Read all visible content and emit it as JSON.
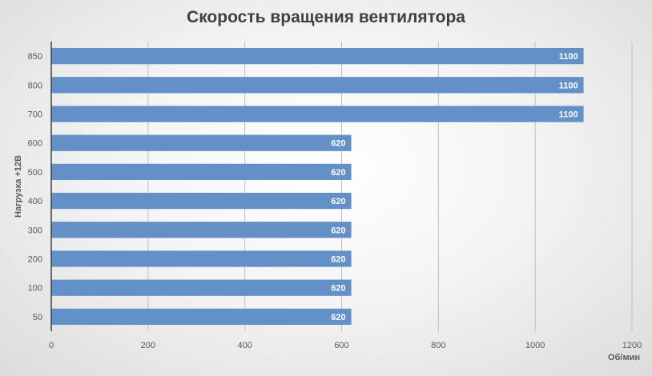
{
  "chart_data": {
    "type": "bar",
    "orientation": "horizontal",
    "title": "Скорость вращения вентилятора",
    "xlabel": "Об/мин",
    "ylabel": "Нагрузка +12В",
    "categories": [
      "850",
      "800",
      "700",
      "600",
      "500",
      "400",
      "300",
      "200",
      "100",
      "50"
    ],
    "values": [
      1100,
      1100,
      1100,
      620,
      620,
      620,
      620,
      620,
      620,
      620
    ],
    "xlim": [
      0,
      1200
    ],
    "xticks": [
      0,
      200,
      400,
      600,
      800,
      1000,
      1200
    ],
    "grid": true,
    "data_labels": true,
    "bar_color": "#6490C8"
  }
}
